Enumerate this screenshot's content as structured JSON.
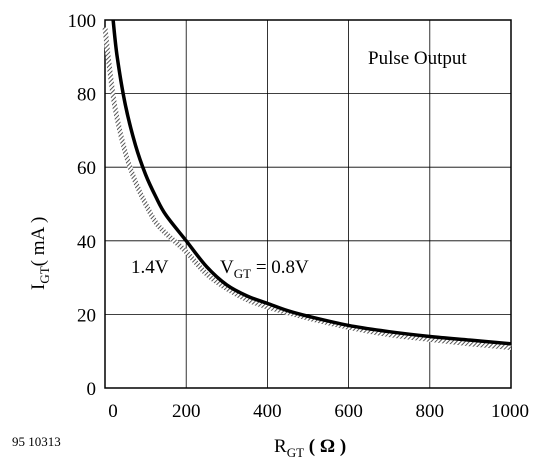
{
  "figure_id": "95 10313",
  "chart_data": {
    "type": "line",
    "xlabel": {
      "main": "R",
      "sub": "GT",
      "rest": " ( Ω )"
    },
    "ylabel": {
      "main": "I",
      "sub": "GT",
      "rest": "( mA )"
    },
    "xlim": [
      0,
      1000
    ],
    "ylim": [
      0,
      100
    ],
    "x_ticks": [
      0,
      200,
      400,
      600,
      800,
      1000
    ],
    "y_ticks": [
      0,
      20,
      40,
      60,
      80,
      100
    ],
    "grid": true,
    "annotations": {
      "pulse_output": "Pulse Output",
      "label_14v": "1.4V",
      "label_vgt": {
        "main": "V",
        "sub": "GT",
        "rest": " = 0.8V"
      }
    },
    "series": [
      {
        "label_key": "label_vgt",
        "style": "thick-black",
        "x": [
          20,
          30,
          50,
          75,
          100,
          125,
          150,
          200,
          250,
          300,
          350,
          400,
          450,
          500,
          600,
          700,
          800,
          900,
          1000
        ],
        "y": [
          100,
          90,
          77,
          66,
          58,
          52,
          47,
          40,
          33,
          28,
          25,
          23,
          21,
          19.5,
          17,
          15.3,
          14,
          13,
          12
        ]
      },
      {
        "label_key": "label_14v",
        "style": "hatched-gray",
        "x": [
          0,
          10,
          25,
          50,
          75,
          100,
          125,
          150,
          200,
          250,
          300,
          350,
          400,
          450,
          500,
          600,
          700,
          800,
          900,
          1000
        ],
        "y": [
          98,
          88,
          76,
          64,
          56,
          50,
          45,
          42,
          37,
          31,
          27,
          24,
          22,
          20.5,
          19,
          16.5,
          14.5,
          13.2,
          12,
          11
        ]
      }
    ]
  }
}
